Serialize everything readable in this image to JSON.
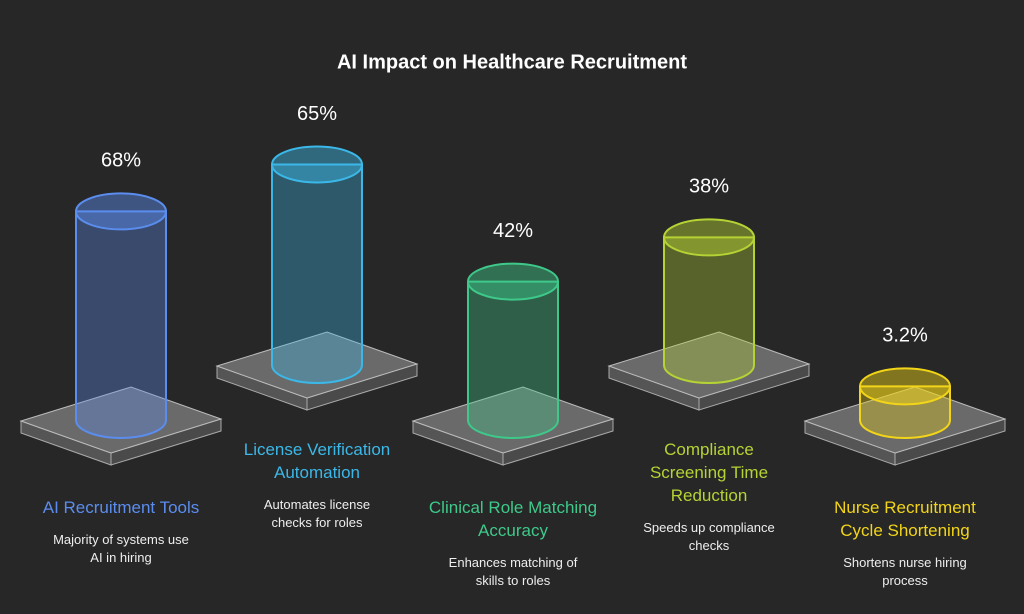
{
  "chart_data": {
    "type": "bar",
    "title": "AI Impact on Healthcare Recruitment",
    "categories": [
      "AI Recruitment Tools",
      "License Verification Automation",
      "Clinical Role Matching Accuracy",
      "Compliance Screening Time Reduction",
      "Nurse Recruitment Cycle Shortening"
    ],
    "values": [
      68,
      65,
      42,
      38,
      3.2
    ],
    "value_labels": [
      "68%",
      "65%",
      "42%",
      "38%",
      "3.2%"
    ],
    "descriptions": [
      "Majority of systems use AI in hiring",
      "Automates license checks for roles",
      "Enhances matching of skills to roles",
      "Speeds up compliance checks",
      "Shortens nurse hiring process"
    ],
    "colors": [
      "#5b8def",
      "#3bb8e8",
      "#3ec98a",
      "#b5d334",
      "#f2d518"
    ]
  }
}
